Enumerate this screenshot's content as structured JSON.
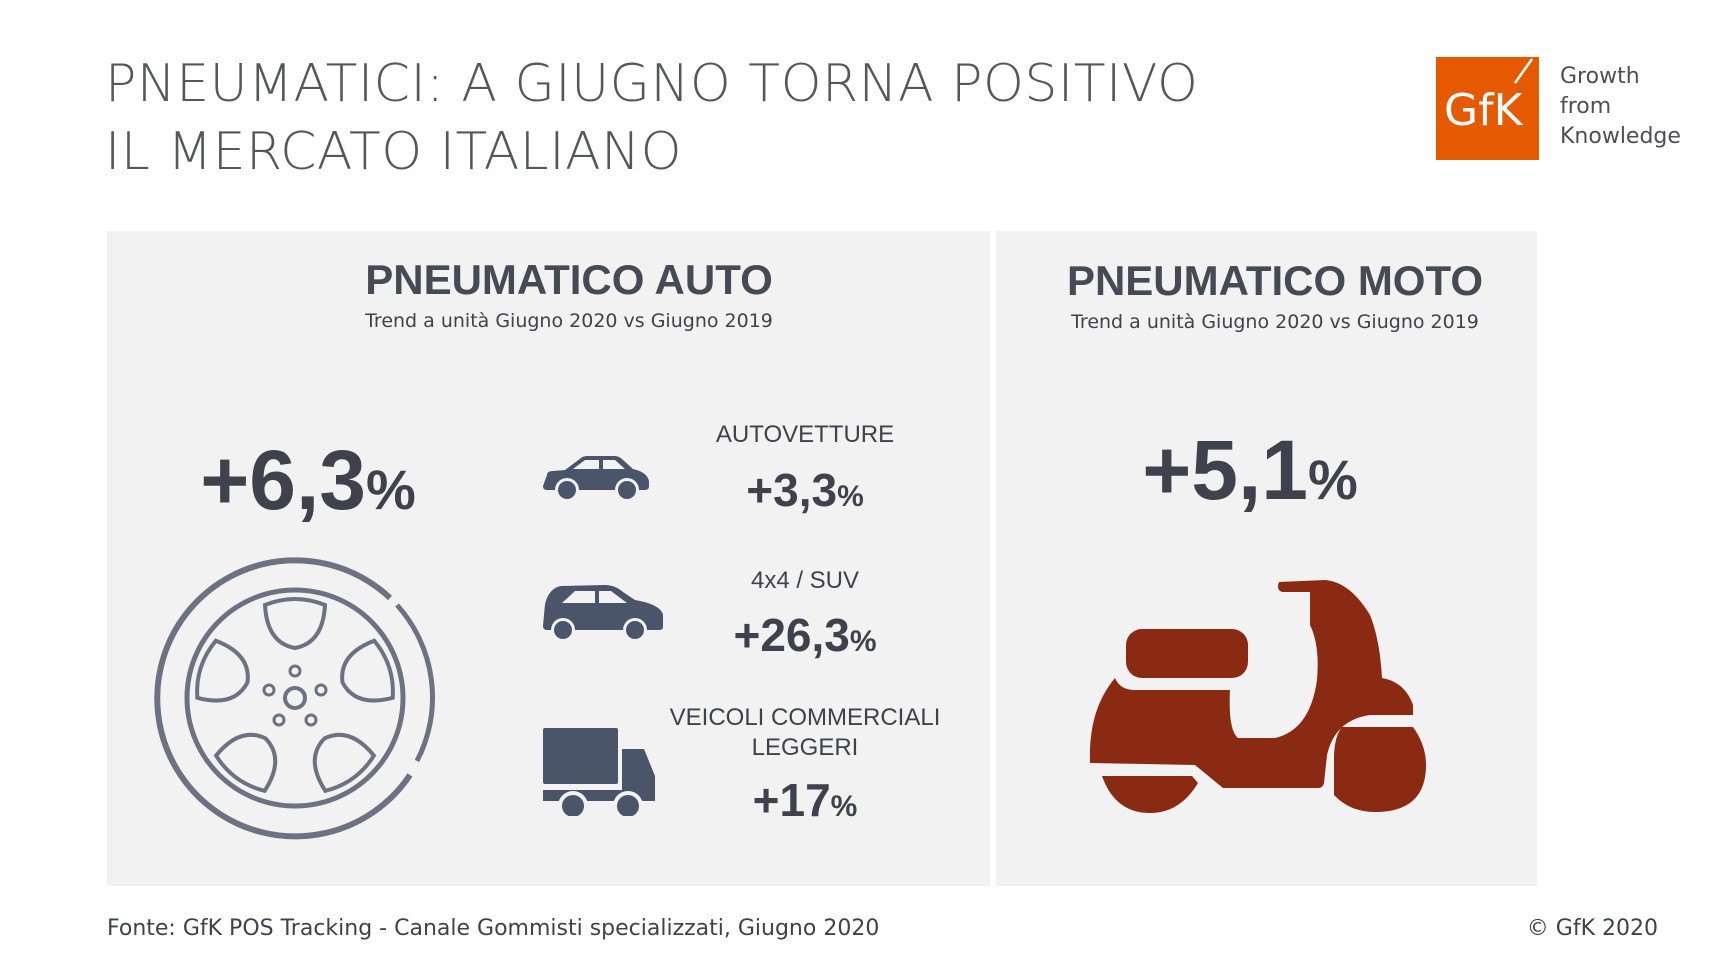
{
  "title": {
    "line1": "PNEUMATICI: A GIUGNO TORNA POSITIVO",
    "line2": "IL MERCATO ITALIANO"
  },
  "logo": {
    "mark": "GfK",
    "tagline": [
      "Growth",
      "from",
      "Knowledge"
    ],
    "color": "#e55a00"
  },
  "auto": {
    "title": "PNEUMATICO AUTO",
    "subtitle": "Trend a unità Giugno 2020 vs Giugno 2019",
    "total": {
      "number": "+6,3",
      "unit": "%"
    },
    "segments": [
      {
        "label": "AUTOVETTURE",
        "number": "+3,3",
        "unit": "%",
        "icon": "car-icon"
      },
      {
        "label": "4x4 / SUV",
        "number": "+26,3",
        "unit": "%",
        "icon": "suv-icon"
      },
      {
        "label": "VEICOLI COMMERCIALI",
        "label2": "LEGGERI",
        "number": "+17",
        "unit": "%",
        "icon": "truck-icon"
      }
    ],
    "icon_color": "#4b5569"
  },
  "moto": {
    "title": "PNEUMATICO MOTO",
    "subtitle": "Trend a unità Giugno 2020 vs Giugno 2019",
    "total": {
      "number": "+5,1",
      "unit": "%"
    },
    "icon_color": "#8a2a12"
  },
  "footer": {
    "source": "Fonte: GfK POS Tracking - Canale Gommisti specializzati, Giugno 2020",
    "copyright": "© GfK 2020"
  }
}
